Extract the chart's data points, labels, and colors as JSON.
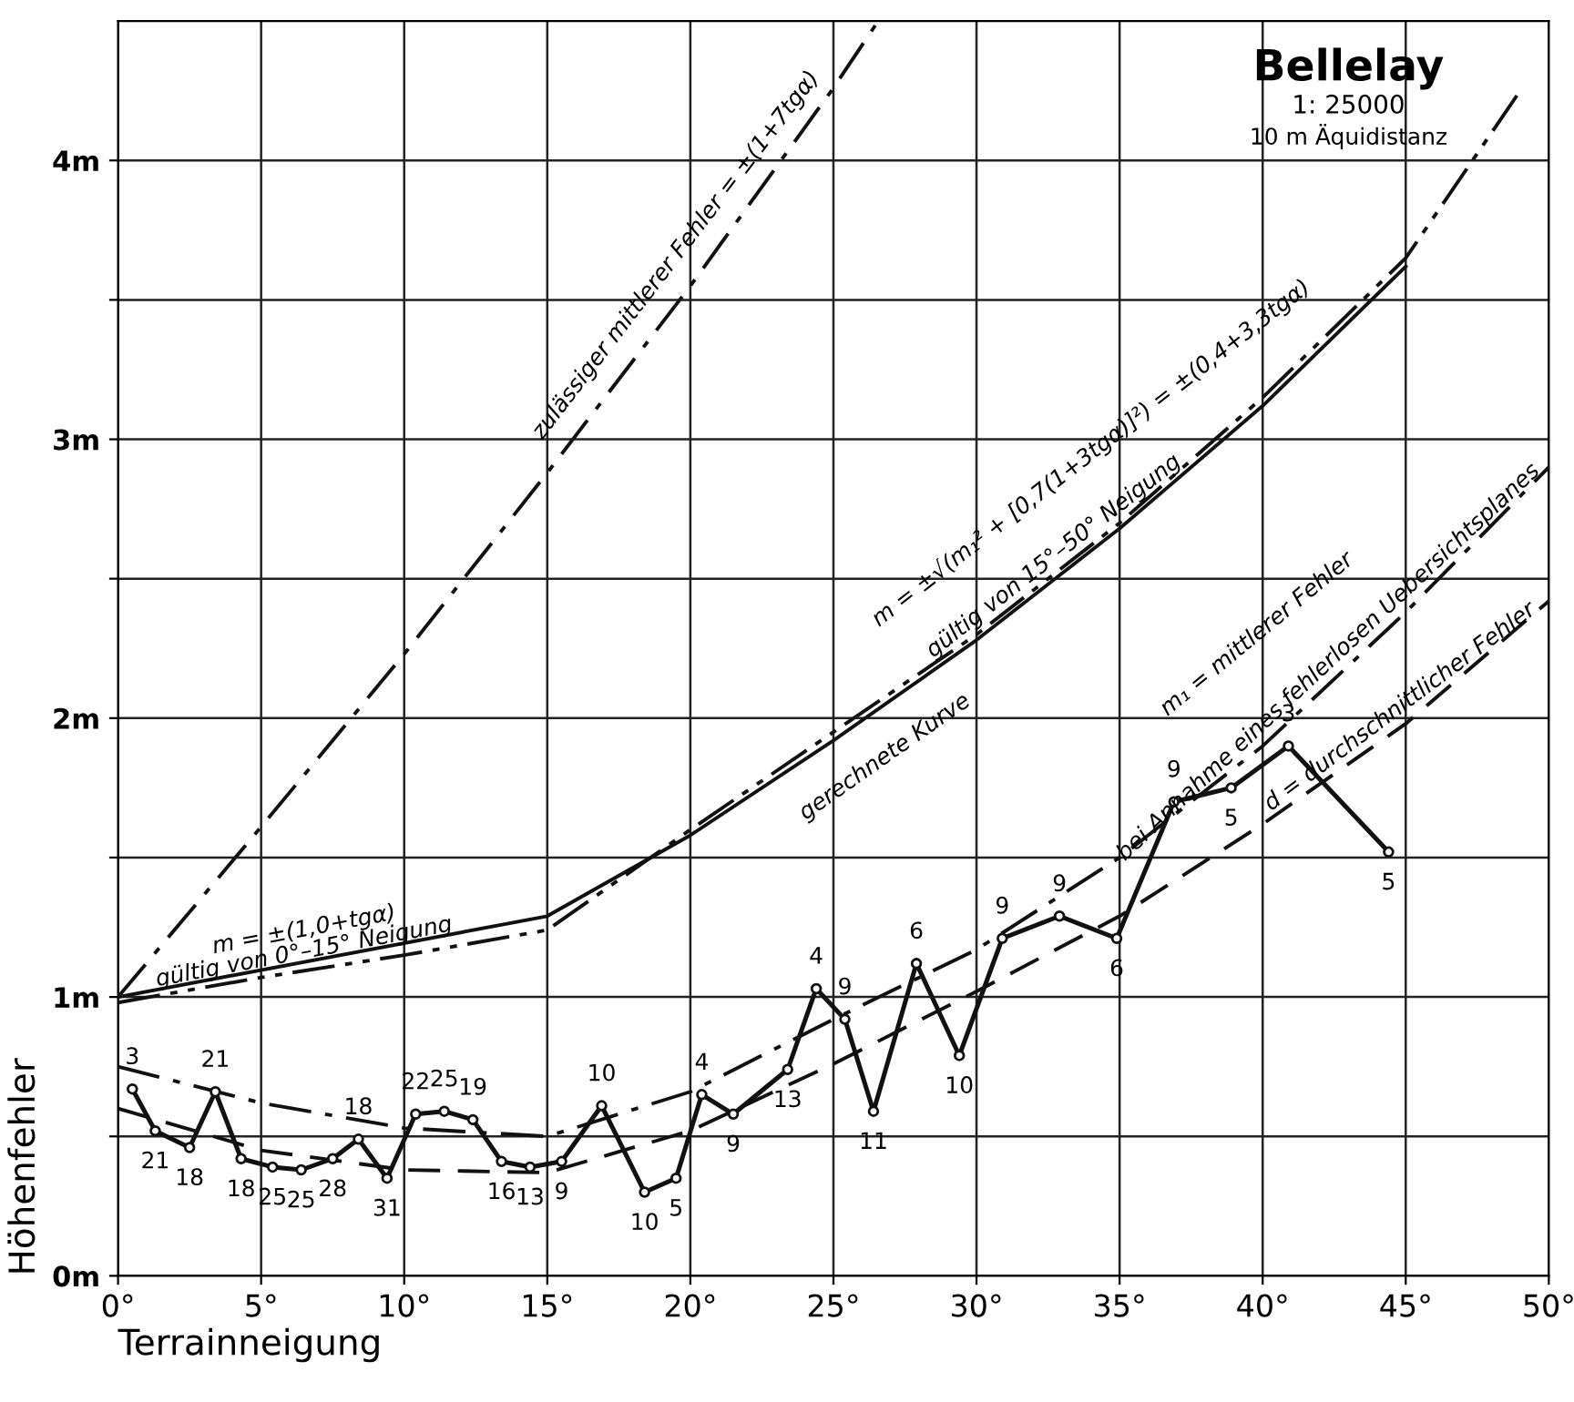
{
  "chart_data": {
    "type": "line",
    "title": "Bellelay",
    "subtitle": "1: 25000",
    "xlabel": "Terrainneigung",
    "ylabel": "Höhenfehler",
    "xlim": [
      0,
      50
    ],
    "ylim": [
      0,
      4.5
    ],
    "xticks": [
      {
        "value": 0,
        "label": "0°"
      },
      {
        "value": 5,
        "label": "5°"
      },
      {
        "value": 10,
        "label": "10°"
      },
      {
        "value": 15,
        "label": "15°"
      },
      {
        "value": 20,
        "label": "20°"
      },
      {
        "value": 25,
        "label": "25°"
      },
      {
        "value": 30,
        "label": "30°"
      },
      {
        "value": 35,
        "label": "35°"
      },
      {
        "value": 40,
        "label": "40°"
      },
      {
        "value": 45,
        "label": "45°"
      },
      {
        "value": 50,
        "label": "50°"
      }
    ],
    "yticks": [
      {
        "value": 0,
        "label": "0m"
      },
      {
        "value": 0.5,
        "label": null
      },
      {
        "value": 1,
        "label": "1m"
      },
      {
        "value": 1.5,
        "label": null
      },
      {
        "value": 2,
        "label": "2m"
      },
      {
        "value": 2.5,
        "label": null
      },
      {
        "value": 3,
        "label": "3m"
      },
      {
        "value": 3.5,
        "label": null
      },
      {
        "value": 4,
        "label": "4m"
      }
    ],
    "grid": true,
    "series": [
      {
        "color": "#111111",
        "line_style": "dashdot",
        "x": [
          0,
          5,
          10,
          15,
          20,
          25,
          26.5
        ],
        "values": [
          1.0,
          1.61,
          2.23,
          2.88,
          3.55,
          4.26,
          4.49
        ]
      },
      {
        "color": "#111111",
        "line_style": "solid",
        "x": [
          0,
          15,
          20,
          25,
          30,
          35,
          40,
          45
        ],
        "values": [
          1.0,
          1.29,
          1.58,
          1.92,
          2.28,
          2.68,
          3.12,
          3.62
        ]
      },
      {
        "color": "#111111",
        "line_style": "dashdotdot",
        "x": [
          0,
          5,
          10,
          15,
          20,
          25,
          30,
          35,
          40,
          45,
          49
        ],
        "values": [
          0.98,
          1.07,
          1.15,
          1.24,
          1.6,
          1.95,
          2.3,
          2.7,
          3.15,
          3.65,
          4.25
        ]
      },
      {
        "color": "#111111",
        "line_style": "dashdot",
        "x": [
          0,
          5,
          10,
          15,
          20,
          25,
          30,
          35,
          40,
          45,
          50
        ],
        "values": [
          0.75,
          0.62,
          0.53,
          0.5,
          0.66,
          0.92,
          1.17,
          1.5,
          1.9,
          2.38,
          2.9
        ]
      },
      {
        "color": "#111111",
        "line_style": "dashed",
        "x": [
          0,
          5,
          10,
          15,
          20,
          25,
          30,
          35,
          40,
          45,
          50
        ],
        "values": [
          0.6,
          0.45,
          0.38,
          0.37,
          0.52,
          0.76,
          1.02,
          1.29,
          1.62,
          1.98,
          2.42
        ]
      },
      {
        "color": "#111111",
        "line_style": "solid",
        "marker": "circle",
        "x": [
          0.5,
          1.3,
          2.5,
          3.4,
          4.3,
          5.4,
          6.4,
          7.5,
          8.4,
          9.4,
          10.4,
          11.4,
          12.4,
          13.4,
          14.4,
          15.5,
          16.9,
          18.4,
          19.5,
          20.4,
          21.5,
          23.4,
          24.4,
          25.4,
          26.4,
          27.9,
          29.4,
          30.9,
          32.9,
          34.9,
          36.9,
          38.9,
          40.9,
          44.4
        ],
        "values": [
          0.67,
          0.52,
          0.46,
          0.66,
          0.42,
          0.39,
          0.38,
          0.42,
          0.49,
          0.35,
          0.58,
          0.59,
          0.56,
          0.41,
          0.39,
          0.41,
          0.61,
          0.3,
          0.35,
          0.65,
          0.58,
          0.74,
          1.03,
          0.92,
          0.59,
          1.12,
          0.79,
          1.21,
          1.29,
          1.21,
          1.7,
          1.75,
          1.9,
          1.52
        ]
      }
    ],
    "annotations": [
      "10 m Äquidistanz",
      "zulässiger mittlerer Fehler = ±(1+7tgα)",
      "m = ±(1,0+tgα)",
      "gültig von 0°–15° Neigung",
      "m = ±√(m₁² + [0,7(1+3tgα)]²) = ±(0,4+3,3tgα)",
      "gültig von 15°–50° Neigung",
      "gerechnete Kurve",
      "m₁ = mittlerer Fehler",
      "bei Annahme eines fehlerlosen Uebersichtsplanes",
      "d = durchschnittlicher Fehler",
      {
        "text": "3",
        "x": 0.5,
        "y": 0.67
      },
      {
        "text": "21",
        "x": 1.3,
        "y": 0.52
      },
      {
        "text": "18",
        "x": 2.5,
        "y": 0.46
      },
      {
        "text": "21",
        "x": 3.4,
        "y": 0.66
      },
      {
        "text": "18",
        "x": 4.3,
        "y": 0.42
      },
      {
        "text": "25",
        "x": 5.4,
        "y": 0.39
      },
      {
        "text": "25",
        "x": 6.4,
        "y": 0.38
      },
      {
        "text": "28",
        "x": 7.5,
        "y": 0.42
      },
      {
        "text": "18",
        "x": 8.4,
        "y": 0.49
      },
      {
        "text": "31",
        "x": 9.4,
        "y": 0.35
      },
      {
        "text": "22",
        "x": 10.4,
        "y": 0.58
      },
      {
        "text": "25",
        "x": 11.4,
        "y": 0.59
      },
      {
        "text": "19",
        "x": 12.4,
        "y": 0.56
      },
      {
        "text": "16",
        "x": 13.4,
        "y": 0.41
      },
      {
        "text": "13",
        "x": 14.4,
        "y": 0.39
      },
      {
        "text": "9",
        "x": 15.5,
        "y": 0.41
      },
      {
        "text": "10",
        "x": 16.9,
        "y": 0.61
      },
      {
        "text": "10",
        "x": 18.4,
        "y": 0.3
      },
      {
        "text": "5",
        "x": 19.5,
        "y": 0.35
      },
      {
        "text": "4",
        "x": 20.4,
        "y": 0.65
      },
      {
        "text": "9",
        "x": 21.5,
        "y": 0.58
      },
      {
        "text": "13",
        "x": 23.4,
        "y": 0.74
      },
      {
        "text": "4",
        "x": 24.4,
        "y": 1.03
      },
      {
        "text": "9",
        "x": 25.4,
        "y": 0.92
      },
      {
        "text": "11",
        "x": 26.4,
        "y": 0.59
      },
      {
        "text": "6",
        "x": 27.9,
        "y": 1.12
      },
      {
        "text": "10",
        "x": 29.4,
        "y": 0.79
      },
      {
        "text": "9",
        "x": 30.9,
        "y": 1.21
      },
      {
        "text": "9",
        "x": 32.9,
        "y": 1.29
      },
      {
        "text": "6",
        "x": 34.9,
        "y": 1.21
      },
      {
        "text": "9",
        "x": 36.9,
        "y": 1.7
      },
      {
        "text": "5",
        "x": 38.9,
        "y": 1.75
      },
      {
        "text": "3",
        "x": 40.9,
        "y": 1.9
      },
      {
        "text": "5",
        "x": 44.4,
        "y": 1.52
      }
    ]
  }
}
